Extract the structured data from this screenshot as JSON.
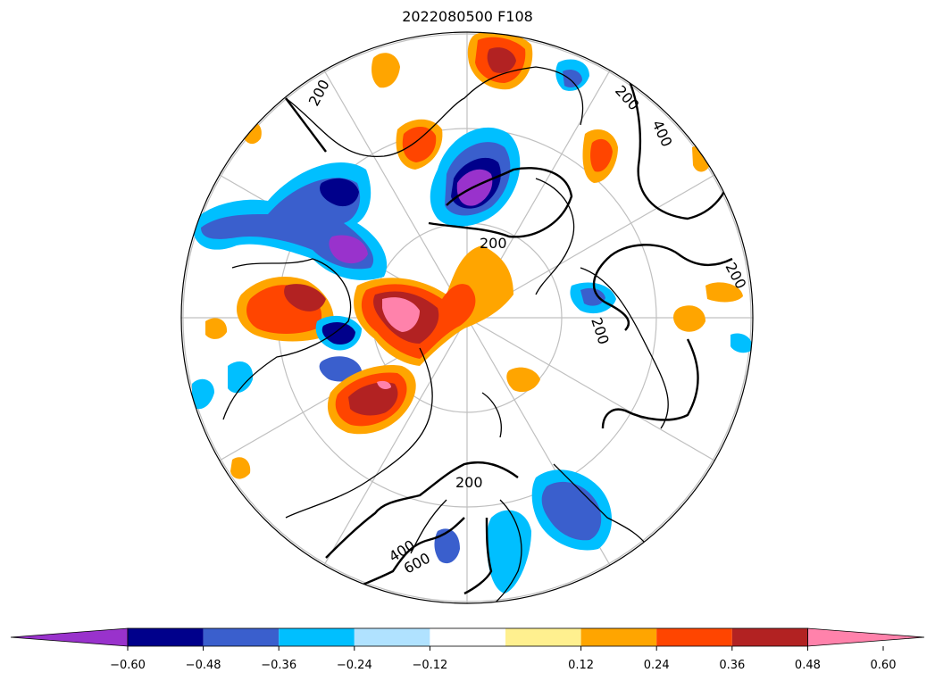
{
  "title": "2022080500 F108",
  "colorbar": {
    "colors": [
      "#9932cc",
      "#00008b",
      "#3a5fcd",
      "#00bfff",
      "#b0e2ff",
      "#ffffff",
      "#fff08f",
      "#ffa500",
      "#ff4500",
      "#b22222",
      "#ff82ab"
    ],
    "tick_labels": [
      "−0.60",
      "−0.48",
      "−0.36",
      "−0.24",
      "−0.12",
      "0.12",
      "0.24",
      "0.36",
      "0.48",
      "0.60"
    ]
  },
  "contour_labels": [
    "200",
    "200",
    "400",
    "200",
    "200",
    "200",
    "200",
    "400",
    "600"
  ],
  "colors": {
    "graticule": "#c0c0c0",
    "coast": "#000000"
  }
}
